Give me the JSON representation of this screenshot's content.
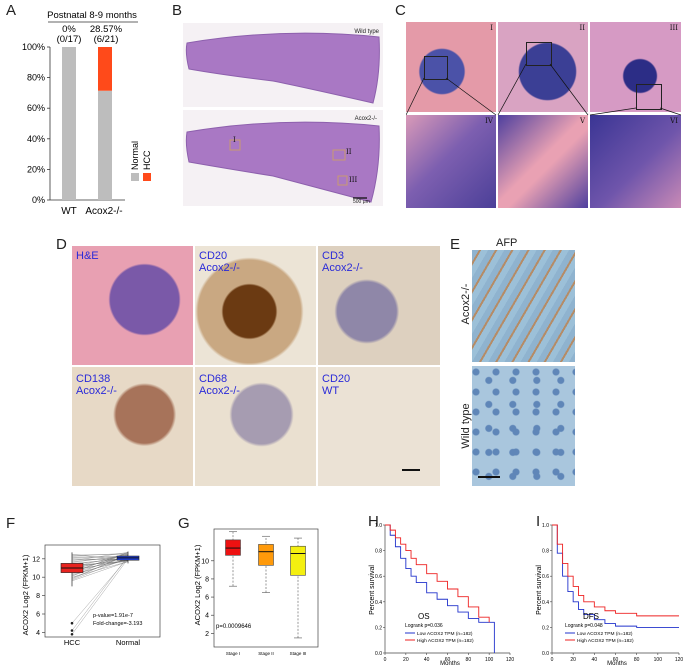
{
  "panels": {
    "A": "A",
    "B": "B",
    "C": "C",
    "D": "D",
    "E": "E",
    "F": "F",
    "G": "G",
    "H": "H",
    "I": "I"
  },
  "panel_a": {
    "title": "Postnatal 8-9 months",
    "wt_pct": "0%",
    "wt_frac": "(0/17)",
    "ko_pct": "28.57%",
    "ko_frac": "(6/21)",
    "legend_normal": "Normal",
    "legend_hcc": "HCC",
    "color_normal": "#bdbdbd",
    "color_hcc": "#ff4a1a",
    "chart_data": {
      "type": "bar",
      "categories": [
        "WT",
        "Acox2-/-"
      ],
      "series": [
        {
          "name": "Normal",
          "values": [
            100,
            71.43
          ]
        },
        {
          "name": "HCC",
          "values": [
            0,
            28.57
          ]
        }
      ],
      "yticks": [
        "0%",
        "20%",
        "40%",
        "60%",
        "80%",
        "100%"
      ],
      "ylim": [
        0,
        100
      ]
    }
  },
  "panel_b": {
    "wild_type": "Wild type",
    "ko": "Acox2-/-",
    "scale": "500 μm",
    "marks": [
      "I",
      "II",
      "III"
    ]
  },
  "panel_c": {
    "top": [
      "I",
      "II",
      "III"
    ],
    "bottom": [
      "IV",
      "V",
      "VI"
    ]
  },
  "panel_d": {
    "tiles": [
      {
        "l1": "H&E",
        "l2": ""
      },
      {
        "l1": "CD20",
        "l2": "Acox2-/-"
      },
      {
        "l1": "CD3",
        "l2": "Acox2-/-"
      },
      {
        "l1": "CD138",
        "l2": "Acox2-/-"
      },
      {
        "l1": "CD68",
        "l2": "Acox2-/-"
      },
      {
        "l1": "CD20",
        "l2": "WT"
      }
    ]
  },
  "panel_e": {
    "title": "AFP",
    "row1": "Acox2-/-",
    "row2": "Wild type"
  },
  "panel_f": {
    "ylabel": "ACOX2 Log2 (FPKM+1)",
    "pvalue": "p-value=1.91e-7",
    "fold": "Fold-change=-3.193",
    "chart_data": {
      "type": "box",
      "categories": [
        "HCC",
        "Normal"
      ],
      "yticks": [
        4,
        6,
        8,
        10,
        12
      ],
      "ylim": [
        3.5,
        13.5
      ],
      "boxes": [
        {
          "name": "HCC",
          "q1": 10.5,
          "median": 11.0,
          "q3": 11.5,
          "min": 9.0,
          "max": 12.7,
          "color": "#e8231f"
        },
        {
          "name": "Normal",
          "q1": 11.85,
          "median": 12.1,
          "q3": 12.3,
          "min": 11.5,
          "max": 12.8,
          "color": "#1f3fd8"
        }
      ]
    }
  },
  "panel_g": {
    "ylabel": "ACOX2 Log2 (FPKM+1)",
    "pvalue": "p=0.0009646",
    "chart_data": {
      "type": "box",
      "categories": [
        "Stage I",
        "Stage II",
        "Stage III"
      ],
      "yticks": [
        2,
        4,
        6,
        8,
        10
      ],
      "ylim": [
        0.5,
        13.5
      ],
      "boxes": [
        {
          "name": "Stage I",
          "q1": 10.6,
          "median": 11.4,
          "q3": 12.3,
          "min": 7.2,
          "max": 13.2,
          "color": "#ee1111"
        },
        {
          "name": "Stage II",
          "q1": 9.5,
          "median": 11.0,
          "q3": 11.8,
          "min": 6.5,
          "max": 12.7,
          "color": "#ff9a0a"
        },
        {
          "name": "Stage III",
          "q1": 8.4,
          "median": 10.8,
          "q3": 11.6,
          "min": 1.5,
          "max": 12.5,
          "color": "#f4ef10"
        }
      ]
    }
  },
  "panel_h": {
    "ylabel": "Percent survival",
    "xlabel": "Months",
    "stat": "OS",
    "logrank": "Logrank p=0.036",
    "leg_low": "Low ACOX2 TPM (n=182)",
    "leg_high": "High ACOX2 TPM (n=182)",
    "chart_data": {
      "type": "line",
      "xticks": [
        0,
        20,
        40,
        60,
        80,
        100,
        120
      ],
      "yticks": [
        "0.0",
        "0.2",
        "0.4",
        "0.6",
        "0.8",
        "1.0"
      ],
      "series": [
        {
          "name": "Low ACOX2 TPM (n=182)",
          "color": "#2233cc",
          "x": [
            0,
            5,
            10,
            15,
            20,
            25,
            30,
            40,
            50,
            60,
            70,
            80,
            90,
            100,
            105
          ],
          "y": [
            1.0,
            0.92,
            0.83,
            0.74,
            0.66,
            0.6,
            0.55,
            0.47,
            0.42,
            0.37,
            0.32,
            0.27,
            0.24,
            0.24,
            0.0
          ]
        },
        {
          "name": "High ACOX2 TPM (n=182)",
          "color": "#ee2222",
          "x": [
            0,
            5,
            10,
            15,
            20,
            25,
            30,
            40,
            50,
            60,
            70,
            80,
            90,
            100
          ],
          "y": [
            1.0,
            0.96,
            0.9,
            0.85,
            0.8,
            0.74,
            0.69,
            0.62,
            0.56,
            0.5,
            0.44,
            0.36,
            0.28,
            0.24
          ]
        }
      ]
    }
  },
  "panel_i": {
    "ylabel": "Percent survival",
    "xlabel": "Months",
    "stat": "DFS",
    "logrank": "Logrank p=0.048",
    "leg_low": "Low ACOX2 TPM (n=182)",
    "leg_high": "High ACOX2 TPM (n=182)",
    "chart_data": {
      "type": "line",
      "xticks": [
        0,
        20,
        40,
        60,
        80,
        100,
        120
      ],
      "yticks": [
        "0.0",
        "0.2",
        "0.4",
        "0.6",
        "0.8",
        "1.0"
      ],
      "series": [
        {
          "name": "Low ACOX2 TPM (n=182)",
          "color": "#2233cc",
          "x": [
            0,
            5,
            10,
            15,
            20,
            25,
            30,
            40,
            50,
            60,
            80,
            100,
            120
          ],
          "y": [
            1.0,
            0.78,
            0.6,
            0.48,
            0.4,
            0.34,
            0.3,
            0.26,
            0.23,
            0.21,
            0.2,
            0.2,
            0.2
          ]
        },
        {
          "name": "High ACOX2 TPM (n=182)",
          "color": "#ee2222",
          "x": [
            0,
            5,
            10,
            15,
            20,
            25,
            30,
            40,
            50,
            60,
            80,
            100,
            120
          ],
          "y": [
            1.0,
            0.85,
            0.7,
            0.6,
            0.52,
            0.45,
            0.4,
            0.36,
            0.33,
            0.31,
            0.29,
            0.29,
            0.29
          ]
        }
      ]
    }
  }
}
